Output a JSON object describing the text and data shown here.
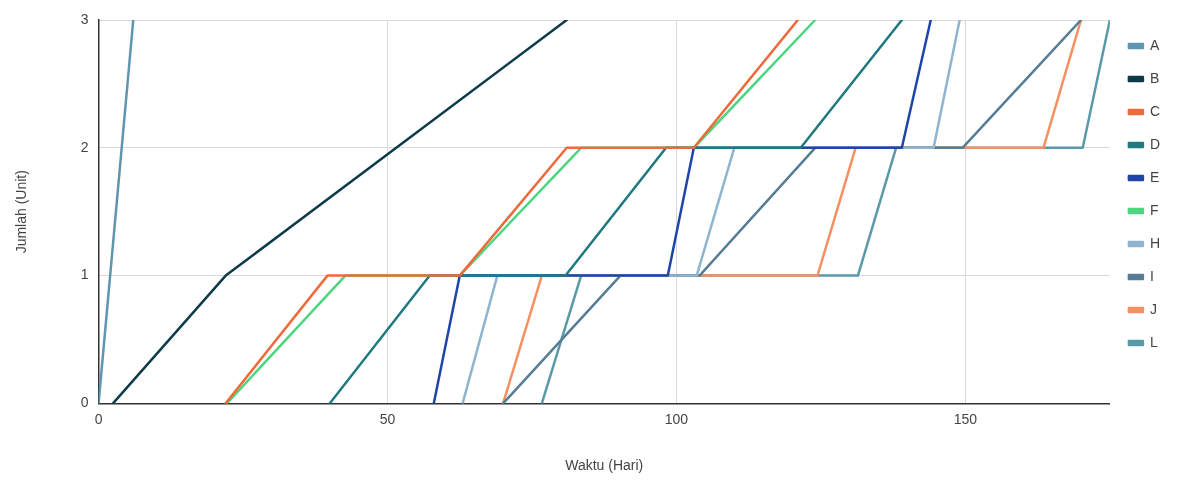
{
  "chart_data": {
    "type": "line",
    "xlabel": "Waktu (Hari)",
    "ylabel": "Jumlah (Unit)",
    "xlim": [
      0,
      175
    ],
    "xticks": [
      0,
      50,
      100,
      150
    ],
    "ylim": [
      0,
      3
    ],
    "yticks": [
      0,
      1,
      2,
      3
    ],
    "grid": true,
    "legend": "right",
    "marker": "none",
    "line_style": "solid",
    "series": [
      {
        "name": "A",
        "color": "#5f95b0",
        "x": [
          0,
          6
        ],
        "values": [
          0,
          3
        ]
      },
      {
        "name": "B",
        "color": "#0d3b4a",
        "x": [
          2.5,
          22,
          81
        ],
        "values": [
          0,
          1,
          3
        ]
      },
      {
        "name": "C",
        "color": "#ef6a3a",
        "x": [
          22,
          39.6,
          62.5,
          81,
          103,
          121
        ],
        "values": [
          0,
          1,
          1,
          2,
          2,
          3
        ]
      },
      {
        "name": "D",
        "color": "#1f7a80",
        "x": [
          40,
          57.3,
          80.8,
          98.2,
          121.5,
          139
        ],
        "values": [
          0,
          1,
          1,
          2,
          2,
          3
        ]
      },
      {
        "name": "E",
        "color": "#1f45a8",
        "x": [
          58,
          62.5,
          98.5,
          103,
          139,
          144
        ],
        "values": [
          0,
          1,
          1,
          2,
          2,
          3
        ]
      },
      {
        "name": "F",
        "color": "#4cd680",
        "x": [
          22.2,
          42.7,
          62.5,
          83.5,
          103,
          124
        ],
        "values": [
          0,
          1,
          1,
          2,
          2,
          3
        ]
      },
      {
        "name": "H",
        "color": "#8fb4cf",
        "x": [
          63,
          69,
          103.5,
          110,
          144.5,
          149
        ],
        "values": [
          0,
          1,
          1,
          2,
          2,
          3
        ]
      },
      {
        "name": "I",
        "color": "#567d94",
        "x": [
          70,
          90.3,
          104,
          124,
          149.5,
          170
        ],
        "values": [
          0,
          1,
          1,
          2,
          2,
          3
        ]
      },
      {
        "name": "J",
        "color": "#f79060",
        "x": [
          70,
          76.7,
          124.4,
          131,
          163.5,
          170
        ],
        "values": [
          0,
          1,
          1,
          2,
          2,
          3
        ]
      },
      {
        "name": "L",
        "color": "#5a9aa8",
        "x": [
          76.7,
          83.5,
          131.4,
          138,
          170.3,
          175
        ],
        "values": [
          0,
          1,
          1,
          2,
          2,
          3
        ]
      }
    ]
  }
}
